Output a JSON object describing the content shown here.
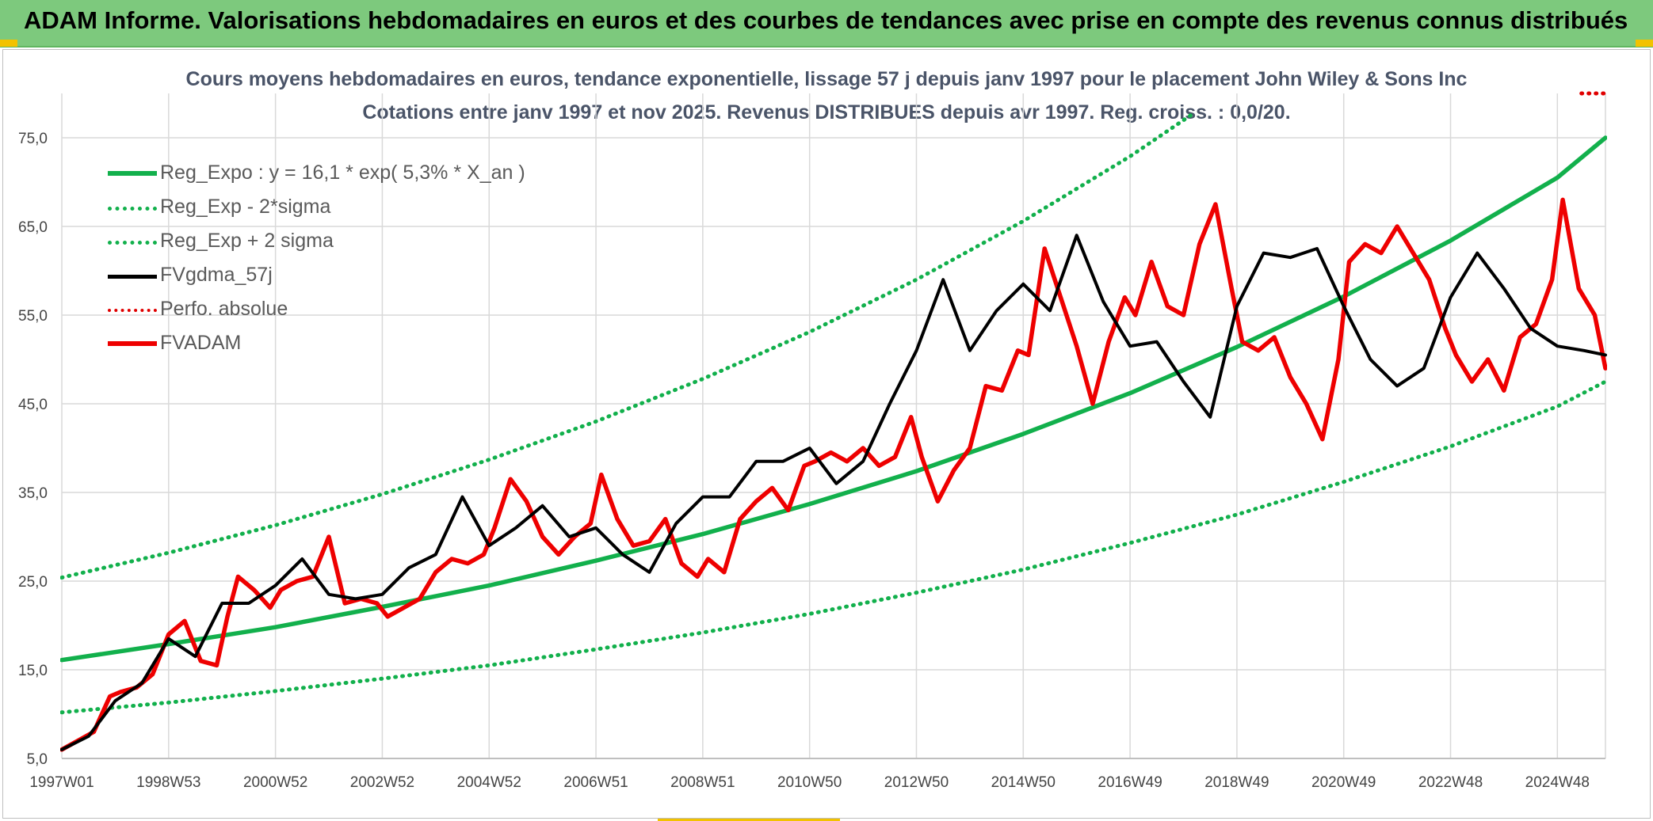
{
  "page": {
    "banner_title": "ADAM Informe. Valorisations hebdomadaires en euros et des courbes de tendances avec prise en compte des revenus connus distribués",
    "banner_color": "#7dc97d",
    "corner_color": "#f2c200"
  },
  "chart_data": {
    "type": "line",
    "title": "Cours moyens hebdomadaires en euros, tendance exponentielle, lissage 57 j depuis janv 1997 pour le placement John Wiley & Sons Inc",
    "subtitle": "Cotations entre janv 1997 et nov 2025. Revenus DISTRIBUES depuis avr 1997. Reg. croiss. : 0,0/20.",
    "xlabel": "",
    "ylabel": "",
    "ylim": [
      5,
      80
    ],
    "xlim": [
      1997.0,
      2025.9
    ],
    "y_ticks": [
      "5,0",
      "15,0",
      "25,0",
      "35,0",
      "45,0",
      "55,0",
      "65,0",
      "75,0"
    ],
    "y_tick_values": [
      5,
      15,
      25,
      35,
      45,
      55,
      65,
      75
    ],
    "x_ticks": [
      "1997W01",
      "1998W53",
      "2000W52",
      "2002W52",
      "2004W52",
      "2006W51",
      "2008W51",
      "2010W50",
      "2012W50",
      "2014W50",
      "2016W49",
      "2018W49",
      "2020W49",
      "2022W48",
      "2024W48"
    ],
    "x_tick_values": [
      1997.0,
      1999.0,
      2001.0,
      2003.0,
      2005.0,
      2007.0,
      2009.0,
      2011.0,
      2013.0,
      2015.0,
      2017.0,
      2019.0,
      2021.0,
      2023.0,
      2025.0
    ],
    "grid": true,
    "legend_position": "top-left",
    "series": [
      {
        "name": "Reg_Expo : y = 16,1 * exp( 5,3% *  X_an )",
        "color": "#12b04c",
        "style": "solid",
        "x": [
          1997.0,
          1999.0,
          2001.0,
          2003.0,
          2005.0,
          2007.0,
          2009.0,
          2011.0,
          2013.0,
          2015.0,
          2017.0,
          2019.0,
          2021.0,
          2023.0,
          2025.0,
          2025.9
        ],
        "values": [
          16.1,
          17.9,
          19.8,
          22.1,
          24.5,
          27.3,
          30.3,
          33.7,
          37.4,
          41.6,
          46.2,
          51.4,
          57.1,
          63.4,
          70.5,
          75.0
        ]
      },
      {
        "name": "Reg_Exp - 2*sigma",
        "color": "#12b04c",
        "style": "dotted",
        "x": [
          1997.0,
          1999.0,
          2001.0,
          2003.0,
          2005.0,
          2007.0,
          2009.0,
          2011.0,
          2013.0,
          2015.0,
          2017.0,
          2019.0,
          2021.0,
          2023.0,
          2025.0,
          2025.9
        ],
        "values": [
          10.2,
          11.3,
          12.6,
          14.0,
          15.5,
          17.3,
          19.2,
          21.3,
          23.7,
          26.3,
          29.3,
          32.5,
          36.2,
          40.2,
          44.7,
          47.5
        ]
      },
      {
        "name": "Reg_Exp + 2 sigma",
        "color": "#12b04c",
        "style": "dotted",
        "x": [
          1997.0,
          1999.0,
          2001.0,
          2003.0,
          2005.0,
          2007.0,
          2009.0,
          2011.0,
          2013.0,
          2015.0,
          2017.0,
          2018.2
        ],
        "values": [
          25.4,
          28.2,
          31.3,
          34.8,
          38.7,
          43.0,
          47.8,
          53.1,
          59.0,
          65.6,
          72.9,
          77.8
        ]
      },
      {
        "name": "FVgdma_57j",
        "color": "#000000",
        "style": "solid",
        "x": [
          1997.0,
          1997.5,
          1998.0,
          1998.5,
          1999.0,
          1999.5,
          2000.0,
          2000.5,
          2001.0,
          2001.5,
          2002.0,
          2002.5,
          2003.0,
          2003.5,
          2004.0,
          2004.5,
          2005.0,
          2005.5,
          2006.0,
          2006.5,
          2007.0,
          2007.5,
          2008.0,
          2008.5,
          2009.0,
          2009.5,
          2010.0,
          2010.5,
          2011.0,
          2011.5,
          2012.0,
          2012.5,
          2013.0,
          2013.5,
          2014.0,
          2014.5,
          2015.0,
          2015.5,
          2016.0,
          2016.5,
          2017.0,
          2017.5,
          2018.0,
          2018.5,
          2019.0,
          2019.5,
          2020.0,
          2020.5,
          2021.0,
          2021.5,
          2022.0,
          2022.5,
          2023.0,
          2023.5,
          2024.0,
          2024.5,
          2025.0,
          2025.5,
          2025.9
        ],
        "values": [
          6.0,
          7.5,
          11.5,
          13.5,
          18.5,
          16.5,
          22.5,
          22.5,
          24.5,
          27.5,
          23.5,
          23.0,
          23.5,
          26.5,
          28.0,
          34.5,
          29.0,
          31.0,
          33.5,
          30.0,
          31.0,
          28.0,
          26.0,
          31.5,
          34.5,
          34.5,
          38.5,
          38.5,
          40.0,
          36.0,
          38.5,
          45.0,
          51.0,
          59.0,
          51.0,
          55.5,
          58.5,
          55.5,
          64.0,
          56.5,
          51.5,
          52.0,
          47.5,
          43.5,
          56.0,
          62.0,
          61.5,
          62.5,
          56.0,
          50.0,
          47.0,
          49.0,
          57.0,
          62.0,
          58.0,
          53.5,
          51.5,
          51.0,
          50.5
        ]
      },
      {
        "name": "Perfo. absolue",
        "color": "#e00000",
        "style": "dotted",
        "x": [
          2025.45,
          2025.9
        ],
        "values": [
          80.0,
          80.0
        ]
      },
      {
        "name": "FVADAM",
        "color": "#ee0000",
        "style": "solid",
        "x": [
          1997.0,
          1997.3,
          1997.6,
          1997.9,
          1998.1,
          1998.4,
          1998.7,
          1999.0,
          1999.3,
          1999.6,
          1999.9,
          2000.1,
          2000.3,
          2000.6,
          2000.9,
          2001.1,
          2001.4,
          2001.7,
          2002.0,
          2002.3,
          2002.6,
          2002.9,
          2003.1,
          2003.4,
          2003.7,
          2004.0,
          2004.3,
          2004.6,
          2004.9,
          2005.1,
          2005.4,
          2005.7,
          2006.0,
          2006.3,
          2006.6,
          2006.9,
          2007.1,
          2007.4,
          2007.7,
          2008.0,
          2008.3,
          2008.6,
          2008.9,
          2009.1,
          2009.4,
          2009.7,
          2010.0,
          2010.3,
          2010.6,
          2010.9,
          2011.1,
          2011.4,
          2011.7,
          2012.0,
          2012.3,
          2012.6,
          2012.9,
          2013.1,
          2013.4,
          2013.7,
          2014.0,
          2014.3,
          2014.6,
          2014.9,
          2015.1,
          2015.4,
          2015.7,
          2016.0,
          2016.3,
          2016.6,
          2016.9,
          2017.1,
          2017.4,
          2017.7,
          2018.0,
          2018.3,
          2018.6,
          2018.9,
          2019.1,
          2019.4,
          2019.7,
          2020.0,
          2020.3,
          2020.6,
          2020.9,
          2021.1,
          2021.4,
          2021.7,
          2022.0,
          2022.3,
          2022.6,
          2022.9,
          2023.1,
          2023.4,
          2023.7,
          2024.0,
          2024.3,
          2024.6,
          2024.9,
          2025.1,
          2025.4,
          2025.7,
          2025.9
        ],
        "values": [
          6.0,
          7.0,
          8.0,
          12.0,
          12.5,
          13.0,
          14.5,
          19.0,
          20.5,
          16.0,
          15.5,
          21.0,
          25.5,
          24.0,
          22.0,
          24.0,
          25.0,
          25.5,
          30.0,
          22.5,
          23.0,
          22.5,
          21.0,
          22.0,
          23.0,
          26.0,
          27.5,
          27.0,
          28.0,
          31.0,
          36.5,
          34.0,
          30.0,
          28.0,
          30.0,
          31.5,
          37.0,
          32.0,
          29.0,
          29.5,
          32.0,
          27.0,
          25.5,
          27.5,
          26.0,
          32.0,
          34.0,
          35.5,
          33.0,
          38.0,
          38.5,
          39.5,
          38.5,
          40.0,
          38.0,
          39.0,
          43.5,
          39.0,
          34.0,
          37.5,
          40.0,
          47.0,
          46.5,
          51.0,
          50.5,
          62.5,
          57.0,
          51.5,
          45.0,
          52.0,
          57.0,
          55.0,
          61.0,
          56.0,
          55.0,
          63.0,
          67.5,
          58.0,
          52.0,
          51.0,
          52.5,
          48.0,
          45.0,
          41.0,
          50.0,
          61.0,
          63.0,
          62.0,
          65.0,
          62.0,
          59.0,
          53.5,
          50.5,
          47.5,
          50.0,
          46.5,
          52.5,
          54.0,
          59.0,
          68.0,
          58.0,
          55.0,
          49.0
        ]
      }
    ]
  }
}
